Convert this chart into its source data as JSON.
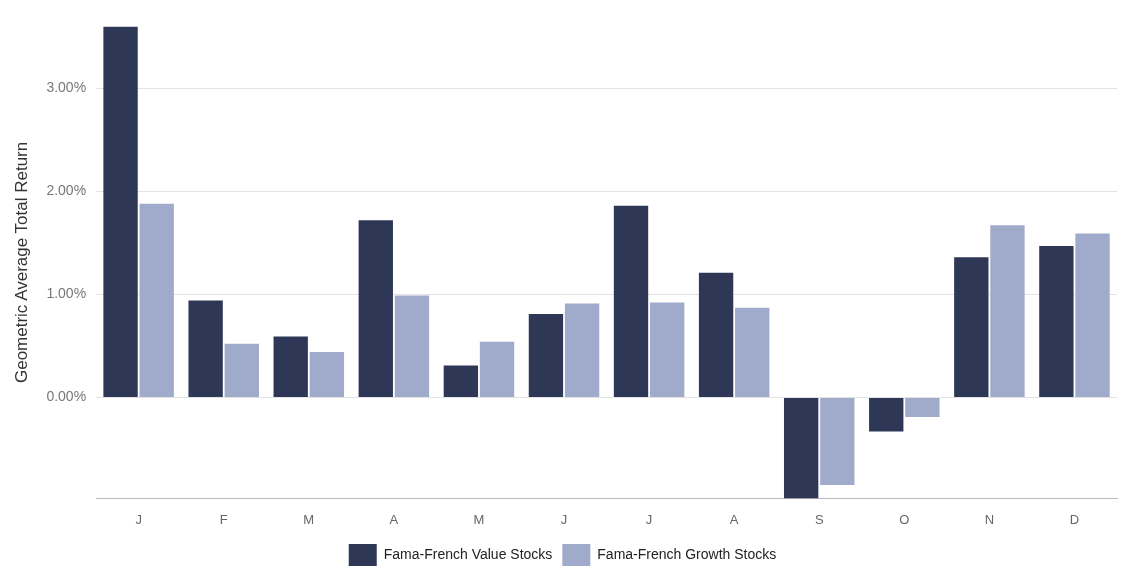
{
  "chart_data": {
    "type": "bar",
    "ylabel": "Geometric Average Total Return",
    "categories": [
      "J",
      "F",
      "M",
      "A",
      "M",
      "J",
      "J",
      "A",
      "S",
      "O",
      "N",
      "D"
    ],
    "series": [
      {
        "name": "Fama-French Value Stocks",
        "color": "#2e3856",
        "values": [
          3.6,
          0.94,
          0.59,
          1.72,
          0.31,
          0.81,
          1.86,
          1.21,
          -0.98,
          -0.33,
          1.36,
          1.47
        ]
      },
      {
        "name": "Fama-French Growth Stocks",
        "color": "#a0abcc",
        "values": [
          1.88,
          0.52,
          0.44,
          0.99,
          0.54,
          0.91,
          0.92,
          0.87,
          -0.85,
          -0.19,
          1.67,
          1.59
        ]
      }
    ],
    "ylim": [
      -0.98,
      3.6
    ],
    "yticks": [
      {
        "value": 0,
        "label": "0.00%"
      },
      {
        "value": 1,
        "label": "1.00%"
      },
      {
        "value": 2,
        "label": "2.00%"
      },
      {
        "value": 3,
        "label": "3.00%"
      }
    ],
    "grid": "y",
    "legend": "bottom"
  }
}
